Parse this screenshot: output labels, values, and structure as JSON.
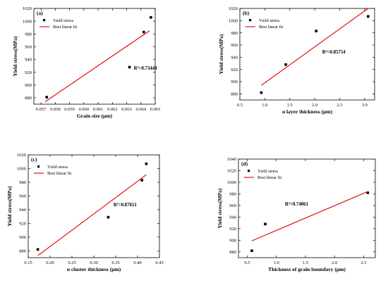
{
  "chart_data": [
    {
      "type": "scatter",
      "panel_label": "(a)",
      "xlabel": "Grain size (μm)",
      "ylabel": "Yield stress(MPa)",
      "xlim": [
        0.0565,
        0.065
      ],
      "ylim": [
        870,
        1020
      ],
      "xticks": [
        "0.057",
        "0.058",
        "0.059",
        "0.060",
        "0.061",
        "0.062",
        "0.063",
        "0.064",
        "0.065"
      ],
      "yticks": [
        "880",
        "900",
        "920",
        "940",
        "960",
        "980",
        "1000",
        "1020"
      ],
      "series": [
        {
          "name": "Yield stress",
          "kind": "points",
          "x": [
            0.0574,
            0.0632,
            0.0642,
            0.0647
          ],
          "y": [
            881,
            928,
            983,
            1006
          ]
        },
        {
          "name": "Best linear fit",
          "kind": "line",
          "x": [
            0.0573,
            0.0646
          ],
          "y": [
            874,
            985
          ]
        }
      ],
      "annotation": {
        "text": "R²=0.73449",
        "x": 0.0635,
        "y": 924
      },
      "legend": "top-left"
    },
    {
      "type": "scatter",
      "panel_label": "(b)",
      "xlabel": "α layer thickness (μm)",
      "ylabel": "Yield stress(MPa)",
      "xlim": [
        0.5,
        3.2
      ],
      "ylim": [
        870,
        1020
      ],
      "xticks": [
        "0.5",
        "1.0",
        "1.5",
        "2.0",
        "2.5",
        "3.0"
      ],
      "yticks": [
        "880",
        "900",
        "920",
        "940",
        "960",
        "980",
        "1000",
        "1020"
      ],
      "series": [
        {
          "name": "Yield stress",
          "kind": "points",
          "x": [
            0.93,
            1.42,
            2.03,
            3.07
          ],
          "y": [
            882,
            928,
            983,
            1007
          ]
        },
        {
          "name": "Best linear fit",
          "kind": "line",
          "x": [
            0.93,
            3.07
          ],
          "y": [
            894,
            1020
          ]
        }
      ],
      "annotation": {
        "text": "R²=0.85754",
        "x": 2.15,
        "y": 946
      },
      "legend": "top-left"
    },
    {
      "type": "scatter",
      "panel_label": "(c)",
      "xlabel": "α cluster thickness (μm)",
      "ylabel": "Yield stress(MPa)",
      "xlim": [
        0.15,
        0.45
      ],
      "ylim": [
        870,
        1020
      ],
      "xticks": [
        "0.15",
        "0.20",
        "0.25",
        "0.30",
        "0.35",
        "0.40",
        "0.45"
      ],
      "yticks": [
        "880",
        "900",
        "920",
        "940",
        "960",
        "980",
        "1000",
        "1020"
      ],
      "series": [
        {
          "name": "Yield stress",
          "kind": "points",
          "x": [
            0.172,
            0.333,
            0.41,
            0.42
          ],
          "y": [
            882,
            929,
            983,
            1007
          ]
        },
        {
          "name": "Best linear fit",
          "kind": "line",
          "x": [
            0.172,
            0.42
          ],
          "y": [
            873,
            991
          ]
        }
      ],
      "annotation": {
        "text": "R²=0.87651",
        "x": 0.345,
        "y": 945
      },
      "legend": "top-left"
    },
    {
      "type": "scatter",
      "panel_label": "(d)",
      "xlabel": "Thickness of grain boundary (μm)",
      "ylabel": "Yield stress(MPa)",
      "xlim": [
        0.35,
        2.7
      ],
      "ylim": [
        870,
        1040
      ],
      "xticks": [
        "0.5",
        "1.0",
        "1.5",
        "2.0",
        "2.5"
      ],
      "yticks": [
        "880",
        "900",
        "920",
        "940",
        "960",
        "980",
        "1000",
        "1020",
        "1040"
      ],
      "series": [
        {
          "name": "Yield stress",
          "kind": "points",
          "x": [
            0.58,
            0.81,
            2.57
          ],
          "y": [
            882,
            928,
            982
          ]
        },
        {
          "name": "Best linear fit",
          "kind": "line",
          "x": [
            0.58,
            2.57
          ],
          "y": [
            899,
            984
          ]
        }
      ],
      "annotation": {
        "text": "R²=0.74061",
        "x": 1.15,
        "y": 960
      },
      "legend": "top-left"
    }
  ],
  "colors": {
    "points": "#000000",
    "fit_line": "#e00000",
    "axis": "#000000"
  }
}
